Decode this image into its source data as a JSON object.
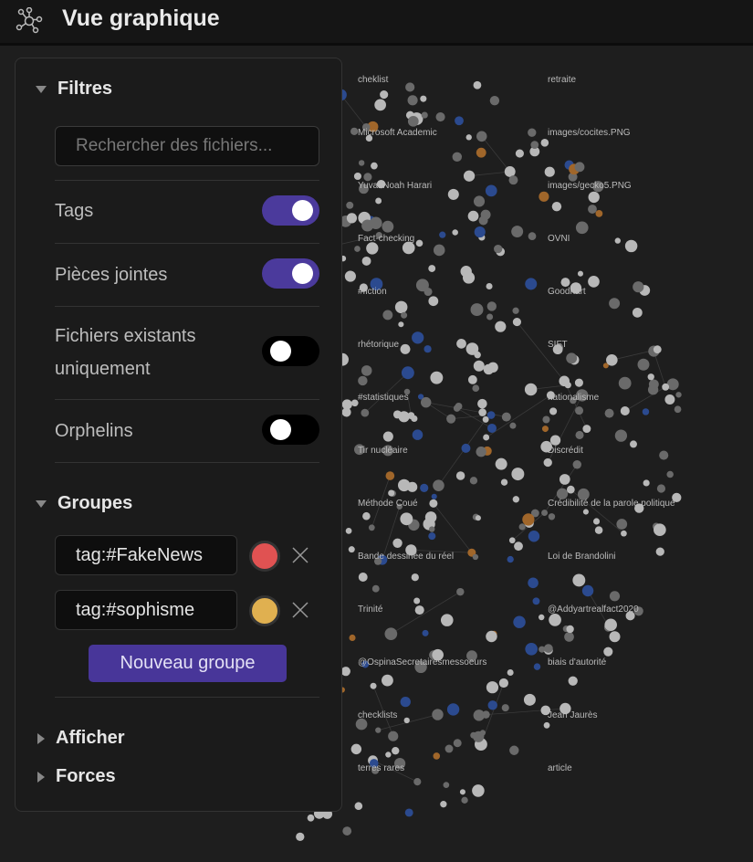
{
  "header": {
    "title": "Vue graphique",
    "icon": "graph-icon"
  },
  "filters": {
    "title": "Filtres",
    "search_placeholder": "Rechercher des fichiers...",
    "toggles": [
      {
        "label": "Tags",
        "on": true
      },
      {
        "label": "Pièces jointes",
        "on": true
      },
      {
        "label": "Fichiers existants uniquement",
        "on": false
      },
      {
        "label": "Orphelins",
        "on": false
      }
    ]
  },
  "groups": {
    "title": "Groupes",
    "items": [
      {
        "query": "tag:#FakeNews",
        "color": "#e05252"
      },
      {
        "query": "tag:#sophisme",
        "color": "#e0b050"
      }
    ],
    "new_group_label": "Nouveau groupe"
  },
  "display": {
    "title": "Afficher"
  },
  "forces": {
    "title": "Forces"
  },
  "colors": {
    "accent": "#483699",
    "toggle_on": "#4b3a9c",
    "node": "#9a9a9a",
    "tag_node": "#2b4a8f",
    "attachment_node": "#a0662a"
  },
  "graph": {
    "labels": [
      "cheklist",
      "retraite",
      "Microsoft Academic",
      "images/cocites.PNG",
      "Yuval Noah Harari",
      "images/gecko5.PNG",
      "Fact-checking",
      "OVNI",
      "#fiction",
      "Goodhart",
      "rhétorique",
      "SIFT",
      "#statistiques",
      "nationalisme",
      "Tir nucléaire",
      "Discrédit",
      "Méthode Coué",
      "Crédibilité de la parole politique",
      "Bande dessinée du réel",
      "Loi de Brandolini",
      "Trinité",
      "@Addyartrealfact2020",
      "@OspinaSecretairesmessoeurs",
      "biais d'autorité",
      "checklists",
      "Jean Jaurès",
      "terres rares",
      "article"
    ]
  }
}
